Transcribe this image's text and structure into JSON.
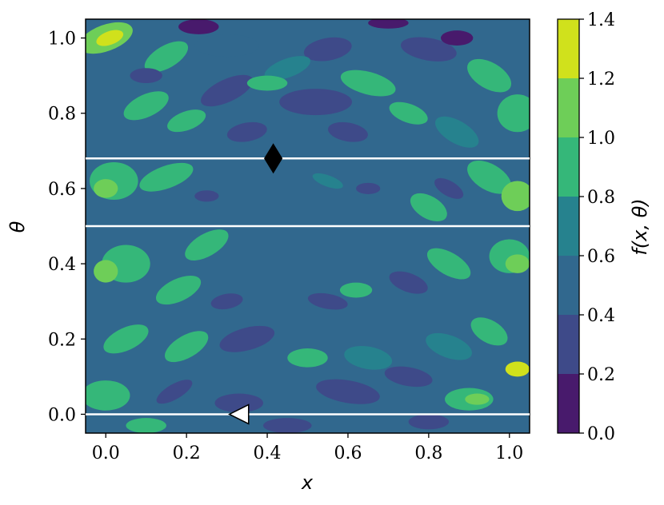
{
  "chart_data": {
    "type": "heatmap",
    "title": "",
    "xlabel": "x",
    "ylabel": "θ",
    "xlim": [
      -0.05,
      1.05
    ],
    "ylim": [
      -0.05,
      1.05
    ],
    "xticks": [
      "0.0",
      "0.2",
      "0.4",
      "0.6",
      "0.8",
      "1.0"
    ],
    "yticks": [
      "0.0",
      "0.2",
      "0.4",
      "0.6",
      "0.8",
      "1.0"
    ],
    "colorbar": {
      "label": "f(x, θ)",
      "ticks": [
        "0.0",
        "0.2",
        "0.4",
        "0.6",
        "0.8",
        "1.0",
        "1.2",
        "1.4"
      ],
      "range": [
        0.0,
        1.4
      ],
      "levels": [
        {
          "from": 0.0,
          "to": 0.2,
          "color": "#481a6c"
        },
        {
          "from": 0.2,
          "to": 0.4,
          "color": "#3e4a89"
        },
        {
          "from": 0.4,
          "to": 0.6,
          "color": "#31688e"
        },
        {
          "from": 0.6,
          "to": 0.8,
          "color": "#26828e"
        },
        {
          "from": 0.8,
          "to": 1.0,
          "color": "#35b779"
        },
        {
          "from": 1.0,
          "to": 1.2,
          "color": "#6ece58"
        },
        {
          "from": 1.2,
          "to": 1.4,
          "color": "#d0e11c"
        }
      ]
    },
    "hlines": [
      0.0,
      0.5,
      0.68
    ],
    "markers": [
      {
        "shape": "diamond",
        "x": 0.415,
        "y": 0.68,
        "color": "#000000"
      },
      {
        "shape": "triangle-left",
        "x": 0.33,
        "y": 0.0,
        "color": "#ffffff"
      }
    ],
    "grid": false
  }
}
